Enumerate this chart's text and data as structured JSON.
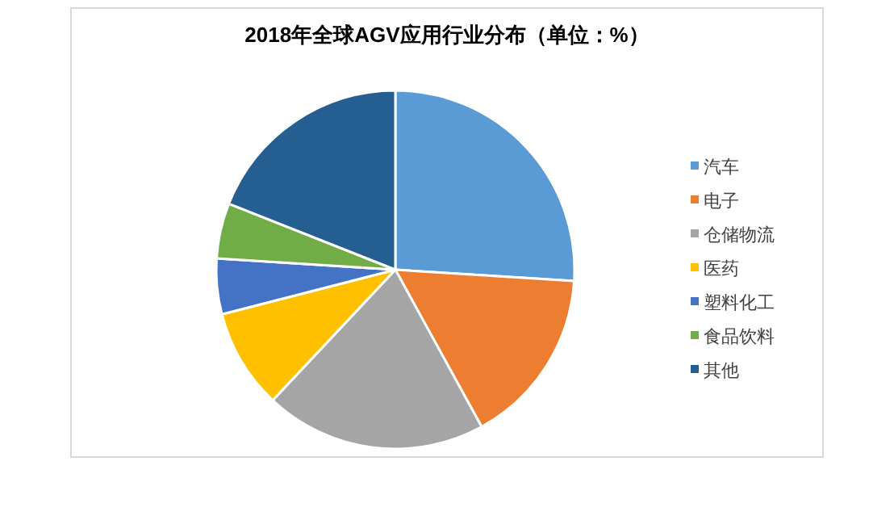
{
  "chart_data": {
    "type": "pie",
    "title": "2018年全球AGV应用行业分布（单位：%）",
    "categories": [
      "汽车",
      "电子",
      "仓储物流",
      "医药",
      "塑料化工",
      "食品饮料",
      "其他"
    ],
    "values": [
      26,
      16,
      20,
      9,
      5,
      5,
      19
    ],
    "colors": [
      "#5b9bd5",
      "#ed7d31",
      "#a5a5a5",
      "#ffc000",
      "#4472c4",
      "#70ad47",
      "#255e91"
    ],
    "legend": "right"
  }
}
